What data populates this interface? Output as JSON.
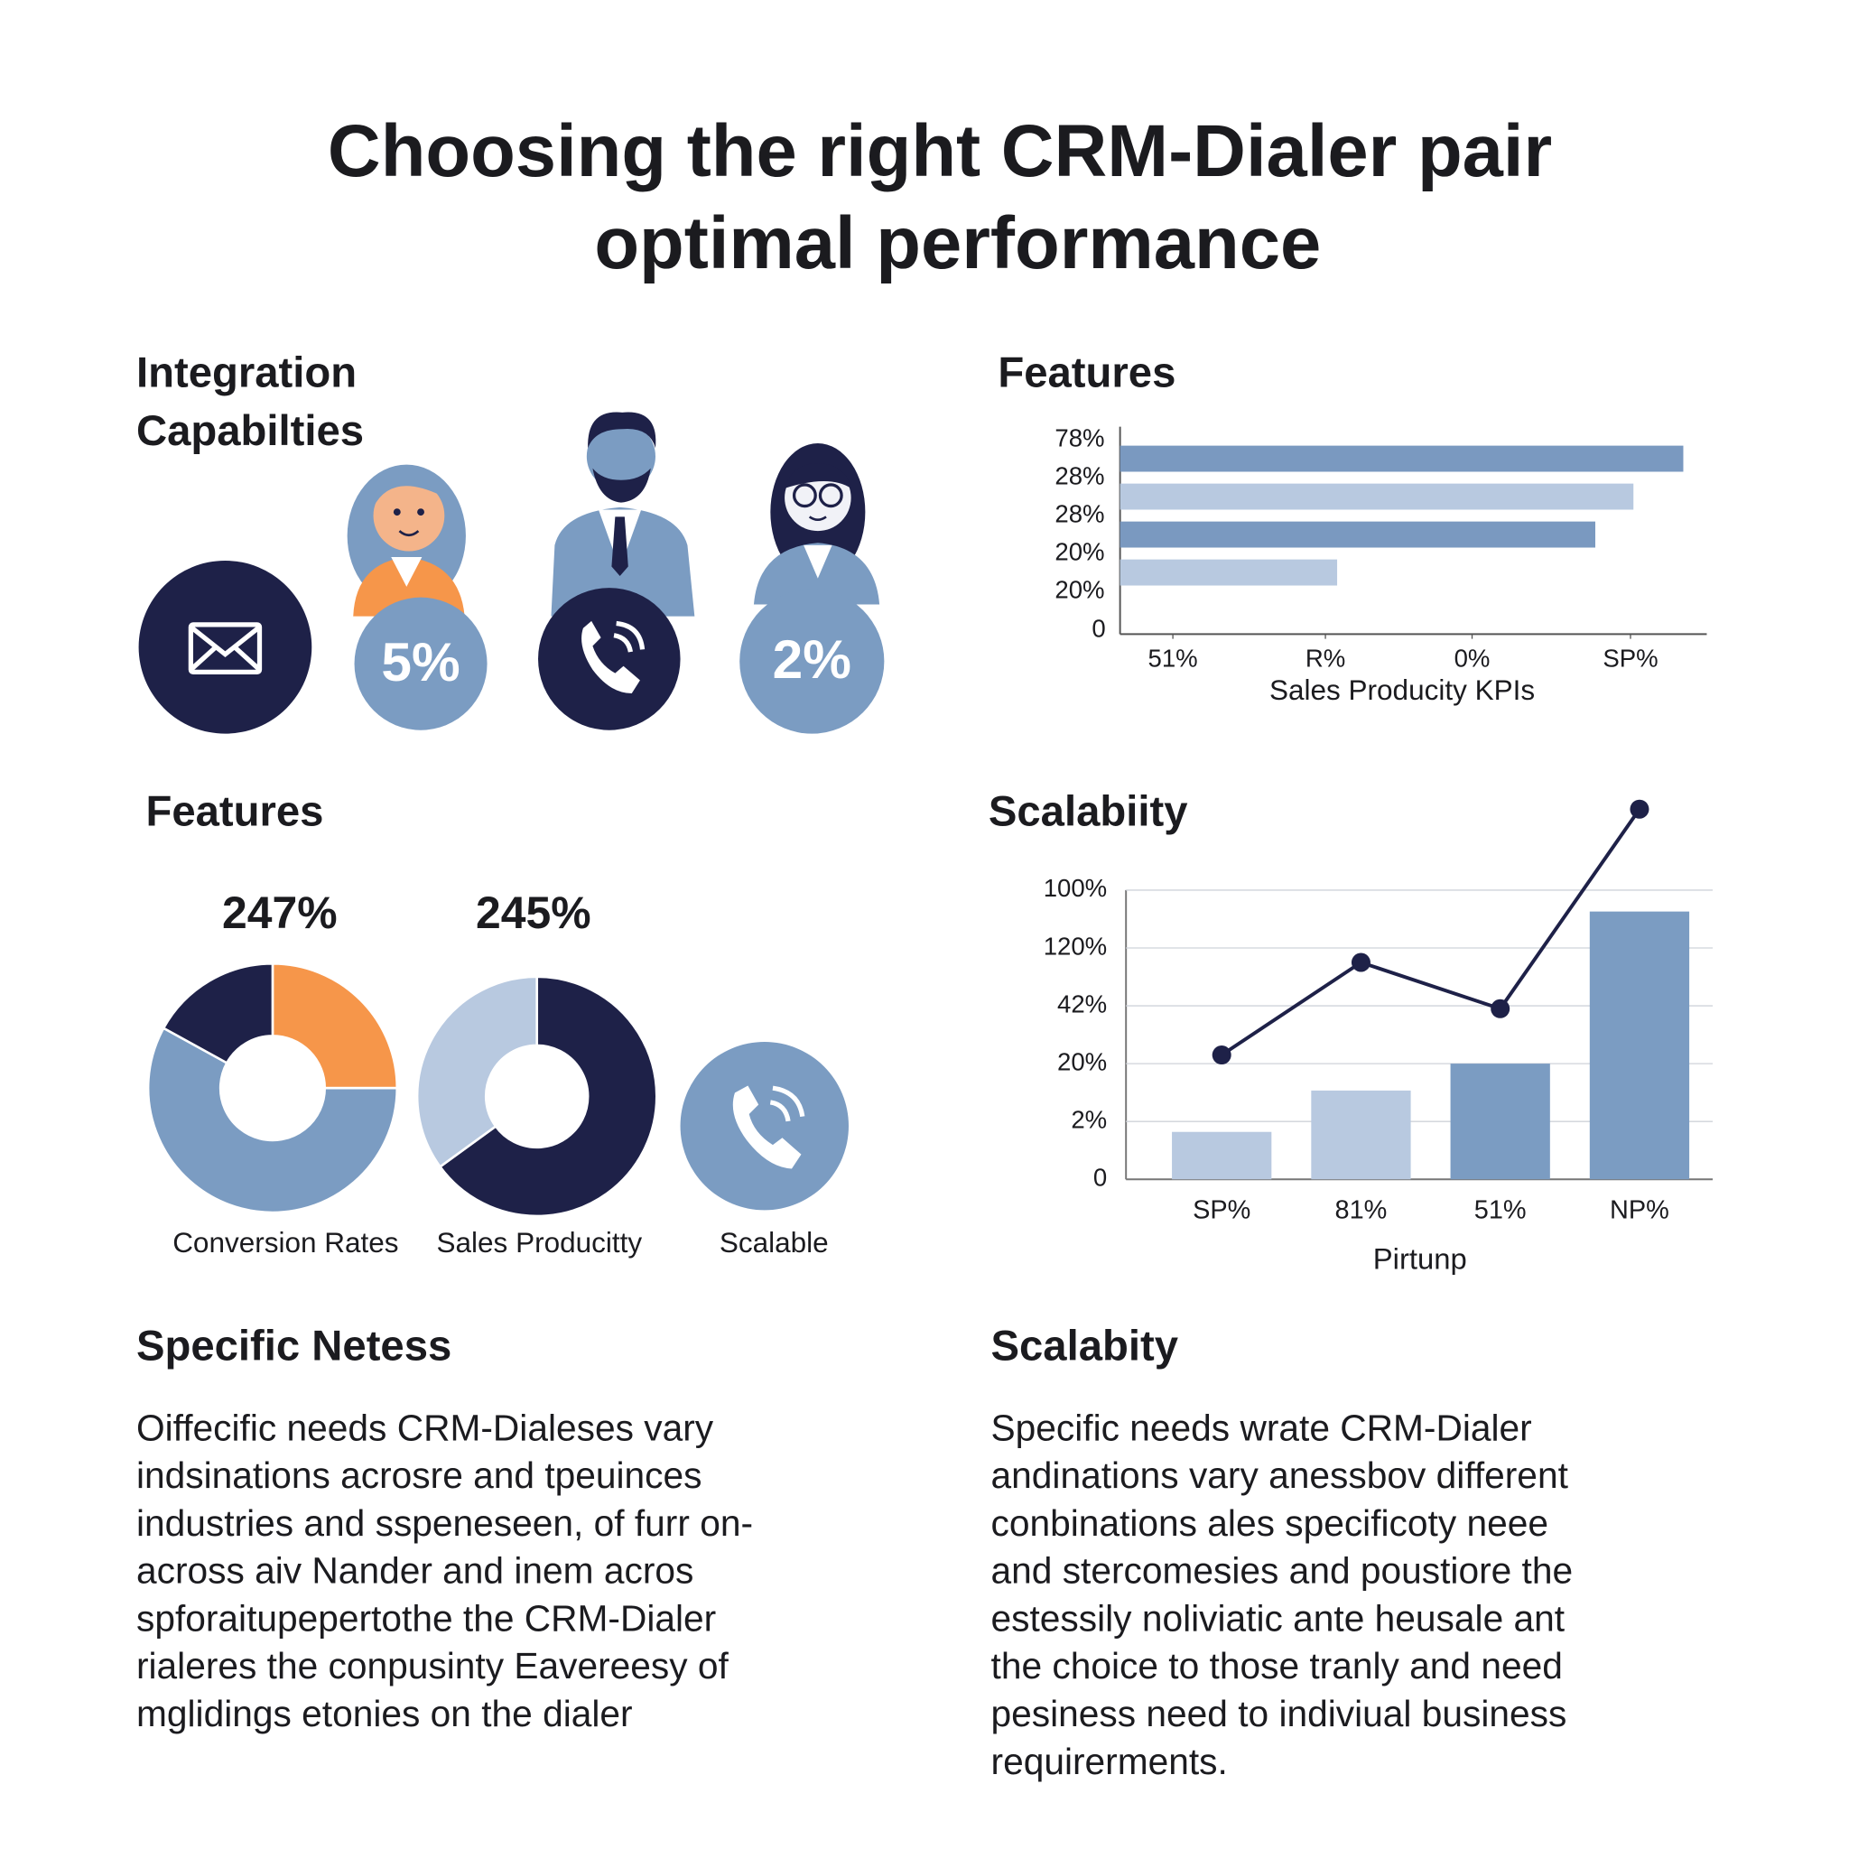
{
  "title": [
    "Choosing the right CRM-Dialer pair",
    "optimal performance"
  ],
  "integration": {
    "heading": [
      "Integration",
      "Capabilties"
    ],
    "badges": [
      "5%",
      "2%"
    ]
  },
  "donut_heading": "Features",
  "scalable_caption": "Scalable",
  "chart_data": [
    {
      "type": "hbar",
      "title": "Features",
      "categories": [
        "78%",
        "28%",
        "28%",
        "20%",
        "20%"
      ],
      "values": [
        96,
        87.5,
        81,
        37,
        null
      ],
      "colors": [
        "#7a99c0",
        "#b8c9e0",
        "#7a99c0",
        "#b8c9e0",
        "#7a99c0"
      ],
      "xlim": [
        0,
        100
      ],
      "xticks": [
        {
          "value": 9,
          "label": "51%"
        },
        {
          "value": 35,
          "label": "R%"
        },
        {
          "value": 60,
          "label": "0%"
        },
        {
          "value": 87,
          "label": "SP%"
        }
      ],
      "origin_label": "0",
      "xlabel": "Sales Producity KPIs"
    },
    {
      "type": "donut",
      "title": "247%",
      "caption": "Conversion Rates",
      "values": [
        25,
        58,
        17
      ],
      "colors": [
        "#f6964a",
        "#7b9cc2",
        "#1e2148"
      ]
    },
    {
      "type": "donut",
      "title": "245%",
      "caption": "Sales Producitty",
      "values": [
        65,
        35
      ],
      "colors": [
        "#1e2148",
        "#b8c9e0"
      ]
    },
    {
      "type": "combo",
      "title": "Scalabiity",
      "categories": [
        "SP%",
        "81%",
        "51%",
        "NP%"
      ],
      "series": [
        {
          "type": "bar",
          "values": [
            16.4,
            30.7,
            40,
            92.6
          ],
          "colors": [
            "#b8c9e0",
            "#b8c9e0",
            "#7b9cc2",
            "#7b9cc2"
          ]
        },
        {
          "type": "line",
          "values": [
            43,
            75,
            59,
            128
          ],
          "color": "#1e2148"
        }
      ],
      "ylim": [
        0,
        100
      ],
      "yticks": [
        0,
        {
          "value": 20,
          "label": "2%"
        },
        {
          "value": 40,
          "label": "20%"
        },
        {
          "value": 60,
          "label": "42%"
        },
        {
          "value": 80,
          "label": "120%"
        },
        {
          "value": 100,
          "label": "100%"
        }
      ],
      "grid": true,
      "xlabel": "Pirtunp"
    }
  ],
  "sections": [
    {
      "heading": "Specific Netess",
      "lines": [
        "Oiffecific needs CRM-Dialeses vary",
        "indsinations acrosre and tpeuinces",
        "industries and sspeneseen, of furr on-",
        "across aiv Nander and inem acros",
        "spforaitupepertothe the CRM-Dialer",
        "rialeres the conpusinty Eavereesy of",
        "mglidings etonies on the dialer"
      ]
    },
    {
      "heading": "Scalabity",
      "lines": [
        "Specific needs wrate CRM-Dialer",
        "andinations vary anessbov different",
        "conbinations ales specificoty neee",
        "and stercomesies and poustiore the",
        "estessily noliviatic ante heusale ant",
        "the choice to those tranly and need",
        "pesiness need to indiviual business",
        "requirerments."
      ]
    }
  ]
}
